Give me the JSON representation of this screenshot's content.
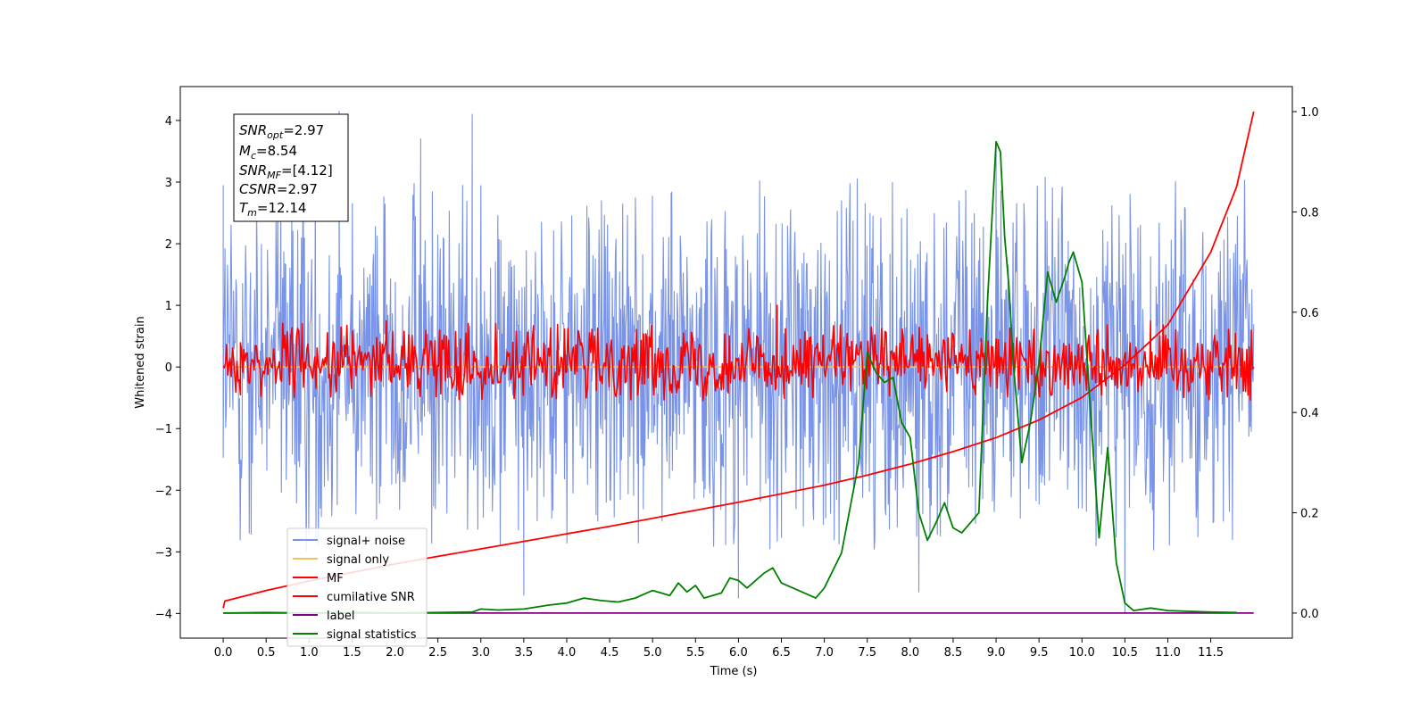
{
  "chart_data": {
    "type": "line",
    "xlabel": "Time (s)",
    "ylabel": "Whitened strain",
    "xlim": [
      -0.5,
      12.45
    ],
    "ylim_left": [
      -4.4,
      4.55
    ],
    "ylim_right": [
      -0.05,
      1.05
    ],
    "x_ticks": [
      0.0,
      0.5,
      1.0,
      1.5,
      2.0,
      2.5,
      3.0,
      3.5,
      4.0,
      4.5,
      5.0,
      5.5,
      6.0,
      6.5,
      7.0,
      7.5,
      8.0,
      8.5,
      9.0,
      9.5,
      10.0,
      10.5,
      11.0,
      11.5
    ],
    "x_tick_labels": [
      "0.0",
      "0.5",
      "1.0",
      "1.5",
      "2.0",
      "2.5",
      "3.0",
      "3.5",
      "4.0",
      "4.5",
      "5.0",
      "5.5",
      "6.0",
      "6.5",
      "7.0",
      "7.5",
      "8.0",
      "8.5",
      "9.0",
      "9.5",
      "10.0",
      "10.5",
      "11.0",
      "11.5"
    ],
    "y_left_ticks": [
      4,
      3,
      2,
      1,
      0,
      -1,
      -2,
      -3,
      -4
    ],
    "y_left_tick_labels": [
      "4",
      "3",
      "2",
      "1",
      "0",
      "−1",
      "−2",
      "−3",
      "−4"
    ],
    "y_right_ticks": [
      1.0,
      0.8,
      0.6,
      0.4,
      0.2,
      0.0
    ],
    "y_right_tick_labels": [
      "1.0",
      "0.8",
      "0.6",
      "0.4",
      "0.2",
      "0.0"
    ],
    "grid": false,
    "legend_position": "bottom-left",
    "series": [
      {
        "name": "signal+ noise",
        "axis": "left",
        "color": "#7893e8",
        "style": "noise",
        "x_range": [
          0.0,
          12.0
        ],
        "envelope": [
          -2.2,
          2.3
        ],
        "extremes": [
          {
            "x": 1.35,
            "y": 4.15
          },
          {
            "x": 2.9,
            "y": 4.1
          },
          {
            "x": 0.0,
            "y": 2.95
          },
          {
            "x": 2.3,
            "y": 3.7
          },
          {
            "x": 9.0,
            "y": 3.6
          },
          {
            "x": 10.5,
            "y": -4.0
          },
          {
            "x": 6.0,
            "y": -3.75
          },
          {
            "x": 3.5,
            "y": -3.7
          },
          {
            "x": 8.1,
            "y": -3.65
          }
        ]
      },
      {
        "name": "signal only",
        "axis": "left",
        "color": "#f5c060",
        "x": [
          0.0,
          12.0
        ],
        "values": [
          0.0,
          0.0
        ]
      },
      {
        "name": "MF",
        "axis": "left",
        "color": "#ff0000",
        "style": "noise",
        "x_range": [
          0.0,
          12.0
        ],
        "envelope": [
          -0.4,
          0.55
        ],
        "extremes": [
          {
            "x": 6.45,
            "y": 1.0
          },
          {
            "x": 1.9,
            "y": 0.75
          },
          {
            "x": 10.8,
            "y": 0.75
          },
          {
            "x": 0.2,
            "y": -0.45
          }
        ]
      },
      {
        "name": "cumilative SNR",
        "axis": "right",
        "color": "#ff0000",
        "x": [
          0.0,
          0.02,
          0.5,
          1.0,
          1.5,
          2.0,
          2.5,
          3.0,
          3.5,
          4.0,
          4.5,
          5.0,
          5.5,
          6.0,
          6.5,
          7.0,
          7.5,
          8.0,
          8.5,
          9.0,
          9.5,
          10.0,
          10.5,
          11.0,
          11.5,
          11.8,
          12.0
        ],
        "values": [
          0.01,
          0.024,
          0.045,
          0.064,
          0.081,
          0.098,
          0.113,
          0.128,
          0.143,
          0.158,
          0.173,
          0.189,
          0.205,
          0.221,
          0.238,
          0.255,
          0.275,
          0.297,
          0.322,
          0.35,
          0.385,
          0.43,
          0.495,
          0.575,
          0.72,
          0.85,
          1.0
        ]
      },
      {
        "name": "label",
        "axis": "right",
        "color": "#800080",
        "x": [
          0.0,
          12.0
        ],
        "values": [
          0.0,
          0.0
        ]
      },
      {
        "name": "signal statistics",
        "axis": "right",
        "color": "#008000",
        "x": [
          0.0,
          0.5,
          1.0,
          1.5,
          2.0,
          2.5,
          2.9,
          3.0,
          3.2,
          3.5,
          3.8,
          4.0,
          4.2,
          4.4,
          4.6,
          4.8,
          5.0,
          5.1,
          5.2,
          5.3,
          5.4,
          5.5,
          5.6,
          5.8,
          5.9,
          6.0,
          6.1,
          6.2,
          6.3,
          6.4,
          6.5,
          6.7,
          6.9,
          7.0,
          7.2,
          7.4,
          7.5,
          7.6,
          7.7,
          7.8,
          7.9,
          8.0,
          8.1,
          8.2,
          8.3,
          8.4,
          8.5,
          8.6,
          8.7,
          8.8,
          8.9,
          9.0,
          9.05,
          9.1,
          9.15,
          9.2,
          9.3,
          9.4,
          9.5,
          9.6,
          9.7,
          9.8,
          9.85,
          9.9,
          10.0,
          10.1,
          10.2,
          10.3,
          10.4,
          10.5,
          10.6,
          10.8,
          11.0,
          11.5,
          11.8
        ],
        "values": [
          0.0,
          0.001,
          0.0,
          0.001,
          0.0,
          0.001,
          0.002,
          0.008,
          0.006,
          0.008,
          0.016,
          0.02,
          0.03,
          0.025,
          0.022,
          0.03,
          0.045,
          0.04,
          0.035,
          0.06,
          0.042,
          0.055,
          0.03,
          0.04,
          0.07,
          0.065,
          0.05,
          0.065,
          0.08,
          0.09,
          0.06,
          0.045,
          0.03,
          0.05,
          0.12,
          0.3,
          0.52,
          0.48,
          0.46,
          0.47,
          0.38,
          0.35,
          0.2,
          0.145,
          0.18,
          0.22,
          0.17,
          0.16,
          0.18,
          0.2,
          0.62,
          0.94,
          0.92,
          0.75,
          0.65,
          0.5,
          0.3,
          0.38,
          0.5,
          0.68,
          0.62,
          0.67,
          0.7,
          0.72,
          0.66,
          0.4,
          0.15,
          0.33,
          0.1,
          0.02,
          0.005,
          0.01,
          0.005,
          0.002,
          0.001
        ]
      }
    ]
  },
  "info_box": {
    "snr_opt": "=2.97",
    "mc": "=8.54",
    "snr_mf": "=[4.12]",
    "csnr": "=2.97",
    "tm": "=12.14"
  }
}
